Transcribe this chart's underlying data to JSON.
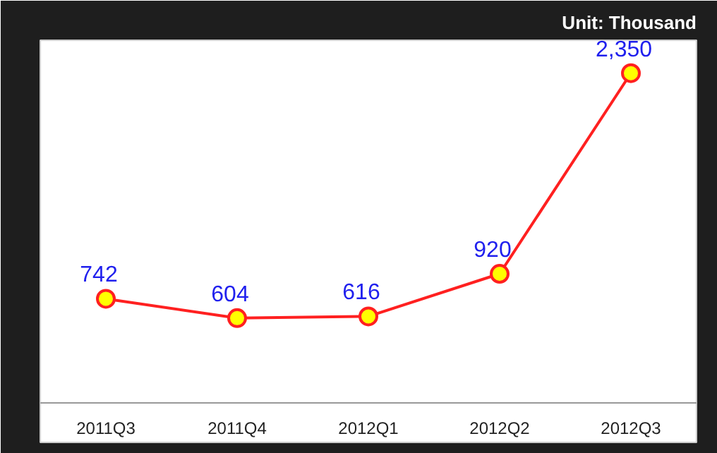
{
  "chart_data": {
    "type": "line",
    "categories": [
      "2011Q3",
      "2011Q4",
      "2012Q1",
      "2012Q2",
      "2012Q3"
    ],
    "series": [
      {
        "color": "#ff2020",
        "values": [
          742,
          604,
          616,
          920,
          2350
        ],
        "value_labels": [
          "742",
          "604",
          "616",
          "920",
          "2,350"
        ]
      }
    ],
    "annotations": [
      "Unit: Thousand"
    ],
    "marker": "circle",
    "line_style": "solid",
    "grid": false
  }
}
